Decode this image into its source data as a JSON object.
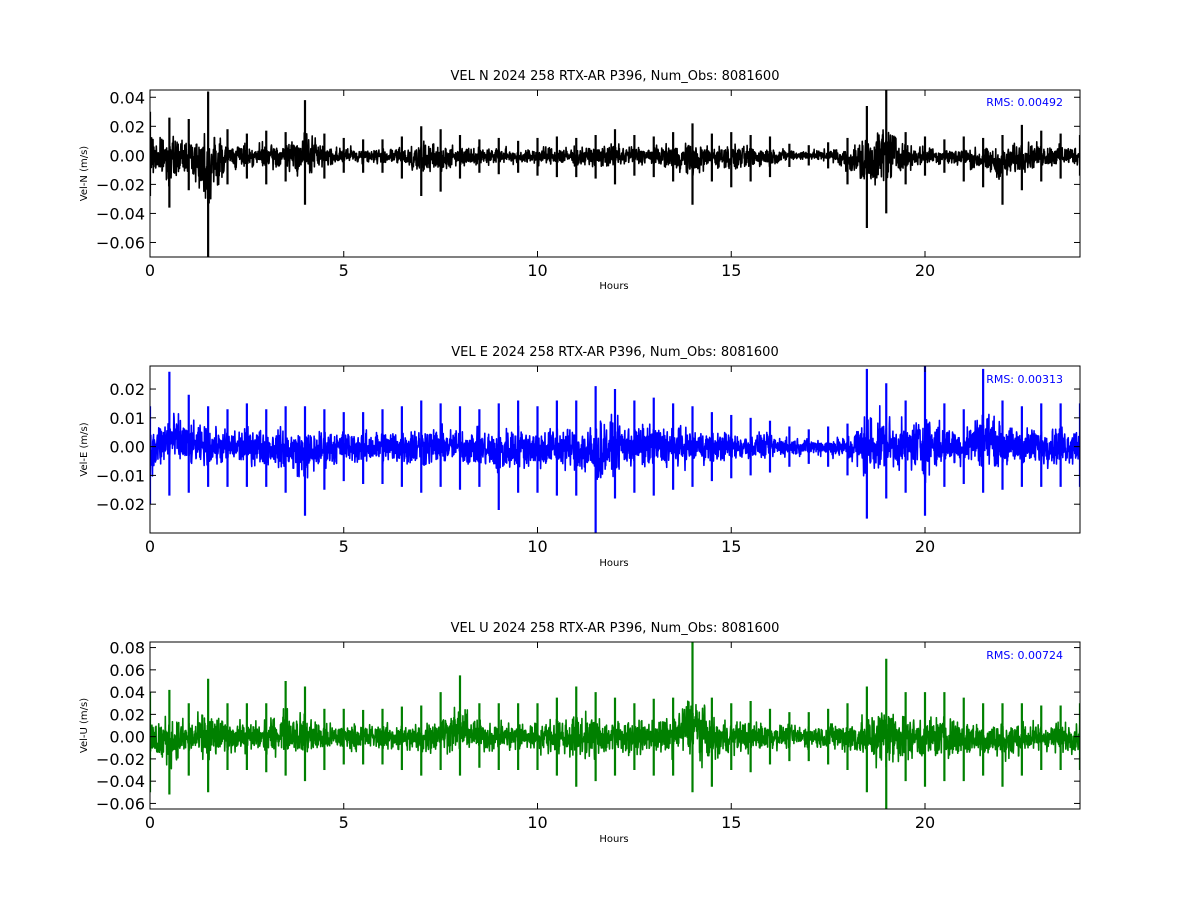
{
  "chart_data": [
    {
      "type": "line",
      "title": "VEL N 2024 258 RTX-AR  P396, Num_Obs: 8081600",
      "xlabel": "Hours",
      "ylabel": "Vel-N (m/s)",
      "xlim": [
        0,
        24
      ],
      "ylim": [
        -0.07,
        0.045
      ],
      "x_ticks": [
        0,
        5,
        10,
        15,
        20
      ],
      "y_ticks": [
        -0.06,
        -0.04,
        -0.02,
        0.0,
        0.02,
        0.04
      ],
      "x_tick_labels": [
        "0",
        "5",
        "10",
        "15",
        "20"
      ],
      "y_tick_labels": [
        "−0.06",
        "−0.04",
        "−0.02",
        "0.00",
        "0.02",
        "0.04"
      ],
      "rms_label": "RMS:  0.00492",
      "color": "#000000",
      "grid": false,
      "series": [
        {
          "x": [
            0,
            0.5,
            1.0,
            1.5,
            2.0,
            2.5,
            3.0,
            3.5,
            4.0,
            4.5,
            5.0,
            5.5,
            6.0,
            6.5,
            7.0,
            7.5,
            8.0,
            8.5,
            9.0,
            9.5,
            10.0,
            10.5,
            11.0,
            11.5,
            12.0,
            12.5,
            13.0,
            13.5,
            14.0,
            14.5,
            15.0,
            15.5,
            16.0,
            16.5,
            17.0,
            17.5,
            18.0,
            18.5,
            19.0,
            19.5,
            20.0,
            20.5,
            21.0,
            21.5,
            22.0,
            22.5,
            23.0,
            23.5,
            24.0
          ],
          "upper": [
            0.03,
            0.026,
            0.025,
            0.044,
            0.018,
            0.015,
            0.017,
            0.016,
            0.038,
            0.015,
            0.012,
            0.011,
            0.011,
            0.013,
            0.02,
            0.018,
            0.014,
            0.011,
            0.012,
            0.01,
            0.012,
            0.013,
            0.012,
            0.014,
            0.018,
            0.014,
            0.013,
            0.016,
            0.022,
            0.015,
            0.016,
            0.014,
            0.013,
            0.008,
            0.007,
            0.009,
            0.012,
            0.034,
            0.045,
            0.016,
            0.013,
            0.011,
            0.013,
            0.012,
            0.014,
            0.021,
            0.017,
            0.015,
            0.014
          ],
          "lower": [
            -0.028,
            -0.036,
            -0.024,
            -0.07,
            -0.02,
            -0.016,
            -0.02,
            -0.018,
            -0.034,
            -0.016,
            -0.012,
            -0.012,
            -0.012,
            -0.016,
            -0.028,
            -0.025,
            -0.016,
            -0.012,
            -0.013,
            -0.012,
            -0.014,
            -0.015,
            -0.015,
            -0.016,
            -0.02,
            -0.014,
            -0.015,
            -0.018,
            -0.034,
            -0.018,
            -0.022,
            -0.018,
            -0.015,
            -0.008,
            -0.007,
            -0.009,
            -0.02,
            -0.05,
            -0.04,
            -0.02,
            -0.014,
            -0.012,
            -0.018,
            -0.022,
            -0.034,
            -0.024,
            -0.018,
            -0.016,
            -0.014
          ]
        }
      ]
    },
    {
      "type": "line",
      "title": "VEL E 2024 258 RTX-AR  P396, Num_Obs: 8081600",
      "xlabel": "Hours",
      "ylabel": "Vel-E (m/s)",
      "xlim": [
        0,
        24
      ],
      "ylim": [
        -0.03,
        0.028
      ],
      "x_ticks": [
        0,
        5,
        10,
        15,
        20
      ],
      "y_ticks": [
        -0.02,
        -0.01,
        0.0,
        0.01,
        0.02
      ],
      "x_tick_labels": [
        "0",
        "5",
        "10",
        "15",
        "20"
      ],
      "y_tick_labels": [
        "−0.02",
        "−0.01",
        "0.00",
        "0.01",
        "0.02"
      ],
      "rms_label": "RMS:  0.00313",
      "color": "#0000ff",
      "grid": false,
      "series": [
        {
          "x": [
            0,
            0.5,
            1.0,
            1.5,
            2.0,
            2.5,
            3.0,
            3.5,
            4.0,
            4.5,
            5.0,
            5.5,
            6.0,
            6.5,
            7.0,
            7.5,
            8.0,
            8.5,
            9.0,
            9.5,
            10.0,
            10.5,
            11.0,
            11.5,
            12.0,
            12.5,
            13.0,
            13.5,
            14.0,
            14.5,
            15.0,
            15.5,
            16.0,
            16.5,
            17.0,
            17.5,
            18.0,
            18.5,
            19.0,
            19.5,
            20.0,
            20.5,
            21.0,
            21.5,
            22.0,
            22.5,
            23.0,
            23.5,
            24.0
          ],
          "upper": [
            0.014,
            0.026,
            0.018,
            0.014,
            0.013,
            0.015,
            0.013,
            0.014,
            0.014,
            0.013,
            0.012,
            0.012,
            0.013,
            0.014,
            0.016,
            0.015,
            0.014,
            0.013,
            0.015,
            0.016,
            0.014,
            0.016,
            0.016,
            0.021,
            0.02,
            0.016,
            0.017,
            0.015,
            0.014,
            0.012,
            0.011,
            0.01,
            0.009,
            0.007,
            0.006,
            0.007,
            0.008,
            0.027,
            0.022,
            0.016,
            0.028,
            0.015,
            0.013,
            0.027,
            0.016,
            0.014,
            0.015,
            0.015,
            0.015
          ],
          "lower": [
            -0.02,
            -0.017,
            -0.016,
            -0.014,
            -0.014,
            -0.014,
            -0.014,
            -0.016,
            -0.024,
            -0.015,
            -0.012,
            -0.013,
            -0.013,
            -0.014,
            -0.016,
            -0.014,
            -0.015,
            -0.014,
            -0.022,
            -0.016,
            -0.016,
            -0.017,
            -0.017,
            -0.03,
            -0.018,
            -0.016,
            -0.017,
            -0.015,
            -0.014,
            -0.012,
            -0.011,
            -0.01,
            -0.009,
            -0.007,
            -0.006,
            -0.007,
            -0.01,
            -0.025,
            -0.018,
            -0.016,
            -0.024,
            -0.014,
            -0.013,
            -0.016,
            -0.015,
            -0.014,
            -0.014,
            -0.014,
            -0.014
          ]
        }
      ]
    },
    {
      "type": "line",
      "title": "VEL U 2024 258 RTX-AR  P396, Num_Obs: 8081600",
      "xlabel": "Hours",
      "ylabel": "Vel-U (m/s)",
      "xlim": [
        0,
        24
      ],
      "ylim": [
        -0.065,
        0.085
      ],
      "x_ticks": [
        0,
        5,
        10,
        15,
        20
      ],
      "y_ticks": [
        -0.06,
        -0.04,
        -0.02,
        0.0,
        0.02,
        0.04,
        0.06,
        0.08
      ],
      "x_tick_labels": [
        "0",
        "5",
        "10",
        "15",
        "20"
      ],
      "y_tick_labels": [
        "−0.06",
        "−0.04",
        "−0.02",
        "0.00",
        "0.02",
        "0.04",
        "0.06",
        "0.08"
      ],
      "rms_label": "RMS:  0.00724",
      "color": "#008000",
      "grid": false,
      "series": [
        {
          "x": [
            0,
            0.5,
            1.0,
            1.5,
            2.0,
            2.5,
            3.0,
            3.5,
            4.0,
            4.5,
            5.0,
            5.5,
            6.0,
            6.5,
            7.0,
            7.5,
            8.0,
            8.5,
            9.0,
            9.5,
            10.0,
            10.5,
            11.0,
            11.5,
            12.0,
            12.5,
            13.0,
            13.5,
            14.0,
            14.5,
            15.0,
            15.5,
            16.0,
            16.5,
            17.0,
            17.5,
            18.0,
            18.5,
            19.0,
            19.5,
            20.0,
            20.5,
            21.0,
            21.5,
            22.0,
            22.5,
            23.0,
            23.5,
            24.0
          ],
          "upper": [
            0.04,
            0.042,
            0.03,
            0.052,
            0.03,
            0.03,
            0.03,
            0.05,
            0.045,
            0.025,
            0.025,
            0.024,
            0.025,
            0.027,
            0.028,
            0.04,
            0.055,
            0.03,
            0.03,
            0.03,
            0.03,
            0.035,
            0.045,
            0.04,
            0.035,
            0.03,
            0.034,
            0.035,
            0.085,
            0.035,
            0.03,
            0.032,
            0.025,
            0.022,
            0.022,
            0.025,
            0.03,
            0.045,
            0.07,
            0.04,
            0.04,
            0.04,
            0.035,
            0.03,
            0.03,
            0.03,
            0.028,
            0.028,
            0.03
          ],
          "lower": [
            -0.05,
            -0.052,
            -0.035,
            -0.05,
            -0.03,
            -0.03,
            -0.032,
            -0.035,
            -0.04,
            -0.03,
            -0.025,
            -0.025,
            -0.025,
            -0.03,
            -0.035,
            -0.03,
            -0.035,
            -0.028,
            -0.03,
            -0.03,
            -0.03,
            -0.035,
            -0.045,
            -0.04,
            -0.035,
            -0.03,
            -0.035,
            -0.035,
            -0.05,
            -0.045,
            -0.03,
            -0.032,
            -0.025,
            -0.022,
            -0.022,
            -0.025,
            -0.03,
            -0.05,
            -0.065,
            -0.04,
            -0.045,
            -0.04,
            -0.04,
            -0.035,
            -0.045,
            -0.035,
            -0.03,
            -0.03,
            -0.03
          ]
        }
      ]
    }
  ]
}
